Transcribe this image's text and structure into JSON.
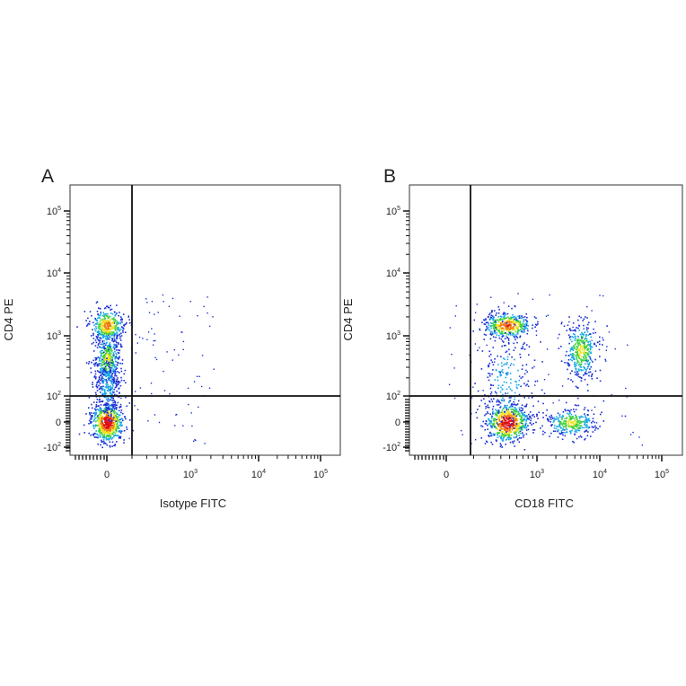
{
  "panels": [
    {
      "label": "A",
      "xlabel": "Isotype FITC",
      "ylabel": "CD4 PE"
    },
    {
      "label": "B",
      "xlabel": "CD18 FITC",
      "ylabel": "CD4 PE"
    }
  ],
  "chart_data": [
    {
      "type": "scatter",
      "panel": "A",
      "xlabel": "Isotype FITC",
      "ylabel": "CD4 PE",
      "xscale": "biexponential",
      "yscale": "biexponential",
      "xticks": [
        "0",
        "10^3",
        "10^4",
        "10^5"
      ],
      "yticks": [
        "10^5",
        "10^4",
        "10^3",
        "10^2",
        "0",
        "-10^2"
      ],
      "quadrant_gate": {
        "x": 150,
        "y": 100
      },
      "colormap": [
        "#1a2fd6",
        "#17a8e8",
        "#3dd13d",
        "#f0e020",
        "#f07a10",
        "#e01010"
      ],
      "populations": [
        {
          "x": 0,
          "y": 0,
          "count": 650,
          "peak": "red"
        },
        {
          "x": 0,
          "y": 450,
          "count": 380,
          "peak": "green"
        },
        {
          "x": 0,
          "y": 1500,
          "count": 380,
          "peak": "yellow"
        },
        {
          "x": 0,
          "y": 150,
          "count": 300,
          "peak": "blue"
        }
      ]
    },
    {
      "type": "scatter",
      "panel": "B",
      "xlabel": "CD18 FITC",
      "ylabel": "CD4 PE",
      "xscale": "biexponential",
      "yscale": "biexponential",
      "xticks": [
        "0",
        "10^3",
        "10^4",
        "10^5"
      ],
      "yticks": [
        "10^5",
        "10^4",
        "10^3",
        "10^2",
        "0",
        "-10^2"
      ],
      "quadrant_gate": {
        "x": 150,
        "y": 100
      },
      "colormap": [
        "#1a2fd6",
        "#17a8e8",
        "#3dd13d",
        "#f0e020",
        "#f07a10",
        "#e01010"
      ],
      "populations": [
        {
          "x": 350,
          "y": 0,
          "count": 650,
          "peak": "red"
        },
        {
          "x": 350,
          "y": 1500,
          "count": 420,
          "peak": "orange"
        },
        {
          "x": 5000,
          "y": 600,
          "count": 380,
          "peak": "green"
        },
        {
          "x": 3500,
          "y": 0,
          "count": 320,
          "peak": "green"
        },
        {
          "x": 350,
          "y": 200,
          "count": 250,
          "peak": "blue"
        }
      ]
    }
  ]
}
